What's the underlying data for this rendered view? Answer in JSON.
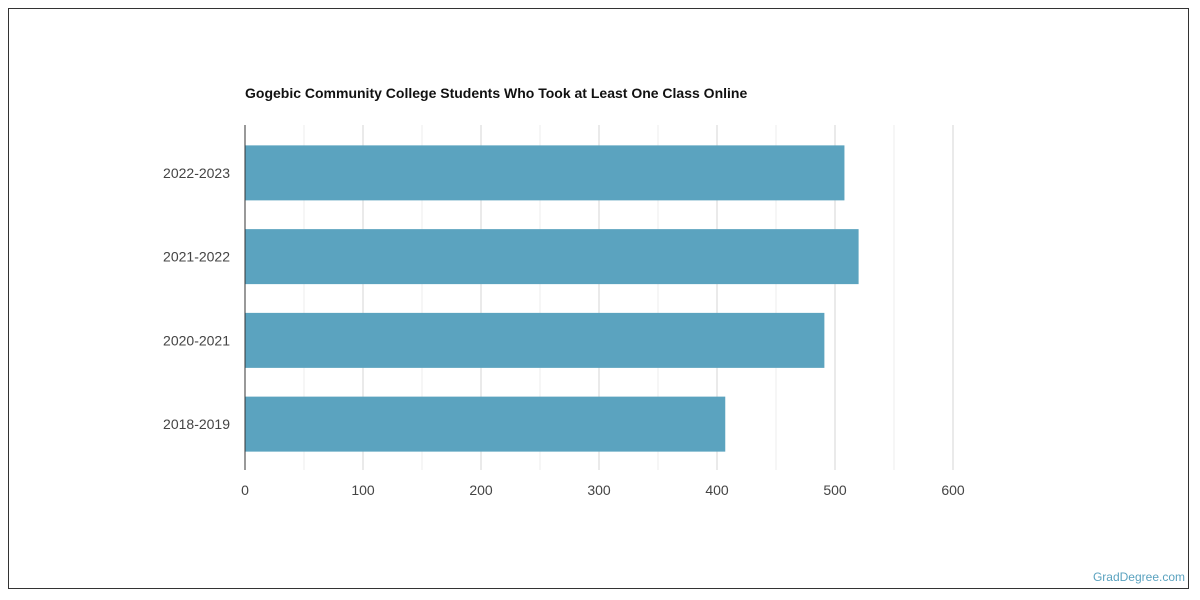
{
  "chart_data": {
    "type": "bar",
    "orientation": "horizontal",
    "title": "Gogebic Community College Students Who Took at Least One Class Online",
    "categories": [
      "2022-2023",
      "2021-2022",
      "2020-2021",
      "2018-2019"
    ],
    "values": [
      508,
      520,
      491,
      407
    ],
    "xlabel": "",
    "ylabel": "",
    "xlim": [
      0,
      600
    ],
    "xticks": [
      0,
      100,
      200,
      300,
      400,
      500,
      600
    ],
    "grid": true,
    "bar_color": "#5ba3bf"
  },
  "watermark": "GradDegree.com"
}
